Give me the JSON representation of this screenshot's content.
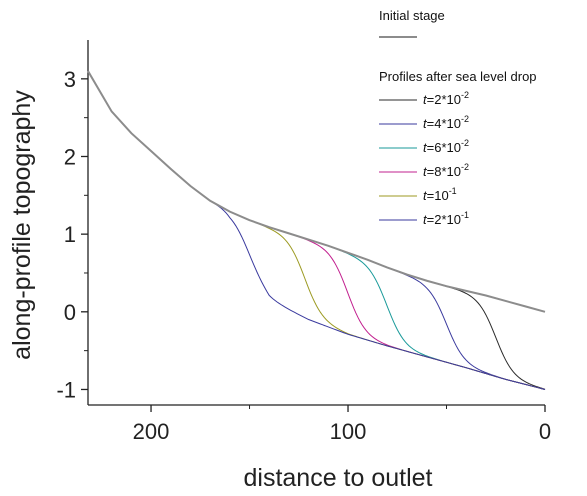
{
  "chart_data": {
    "type": "line",
    "xlabel": "distance to outlet",
    "ylabel": "along-profile topography",
    "xlim": [
      232,
      0
    ],
    "ylim": [
      -1.2,
      3.5
    ],
    "x_reversed": true,
    "x_ticks": [
      "200",
      "100",
      "0"
    ],
    "x_tick_values": [
      200,
      100,
      0
    ],
    "y_ticks": [
      "3",
      "2",
      "1",
      "0",
      "-1"
    ],
    "y_tick_values": [
      3,
      2,
      1,
      0,
      -1
    ],
    "grid": false,
    "legend_position": "top-right",
    "initial_stage": {
      "name": "Initial stage",
      "color": "#8c8c8c",
      "x": [
        232,
        220,
        210,
        200,
        190,
        180,
        170,
        160,
        150,
        140,
        130,
        120,
        110,
        100,
        90,
        80,
        70,
        60,
        50,
        40,
        30,
        20,
        10,
        0
      ],
      "y": [
        3.1,
        2.58,
        2.3,
        2.07,
        1.84,
        1.62,
        1.43,
        1.29,
        1.18,
        1.09,
        1.01,
        0.93,
        0.85,
        0.76,
        0.67,
        0.57,
        0.48,
        0.4,
        0.33,
        0.27,
        0.21,
        0.14,
        0.07,
        0.0
      ]
    },
    "final_line": {
      "x": [
        0,
        20,
        40,
        60,
        80,
        100,
        120,
        140,
        160,
        170
      ],
      "y": [
        -1.0,
        -0.87,
        -0.72,
        -0.58,
        -0.44,
        -0.29,
        -0.1,
        0.15,
        0.75,
        1.43
      ]
    },
    "legend_group_title": "Profiles after sea level drop",
    "series": [
      {
        "label_prefix": "t=",
        "label_value": "2*10",
        "label_exp": "-2",
        "color": "#2b2b2b",
        "knickpoint": 25
      },
      {
        "label_prefix": "t=",
        "label_value": "4*10",
        "label_exp": "-2",
        "color": "#3a3a9e",
        "knickpoint": 50
      },
      {
        "label_prefix": "t=",
        "label_value": "6*10",
        "label_exp": "-2",
        "color": "#1a9a9a",
        "knickpoint": 80
      },
      {
        "label_prefix": "t=",
        "label_value": "8*10",
        "label_exp": "-2",
        "color": "#c2208f",
        "knickpoint": 100
      },
      {
        "label_prefix": "t=",
        "label_value": "10",
        "label_exp": "-1",
        "color": "#9c9a22",
        "knickpoint": 122
      },
      {
        "label_prefix": "t=",
        "label_value": "2*10",
        "label_exp": "-1",
        "color": "#3a3a9e",
        "knickpoint": 152
      }
    ]
  }
}
